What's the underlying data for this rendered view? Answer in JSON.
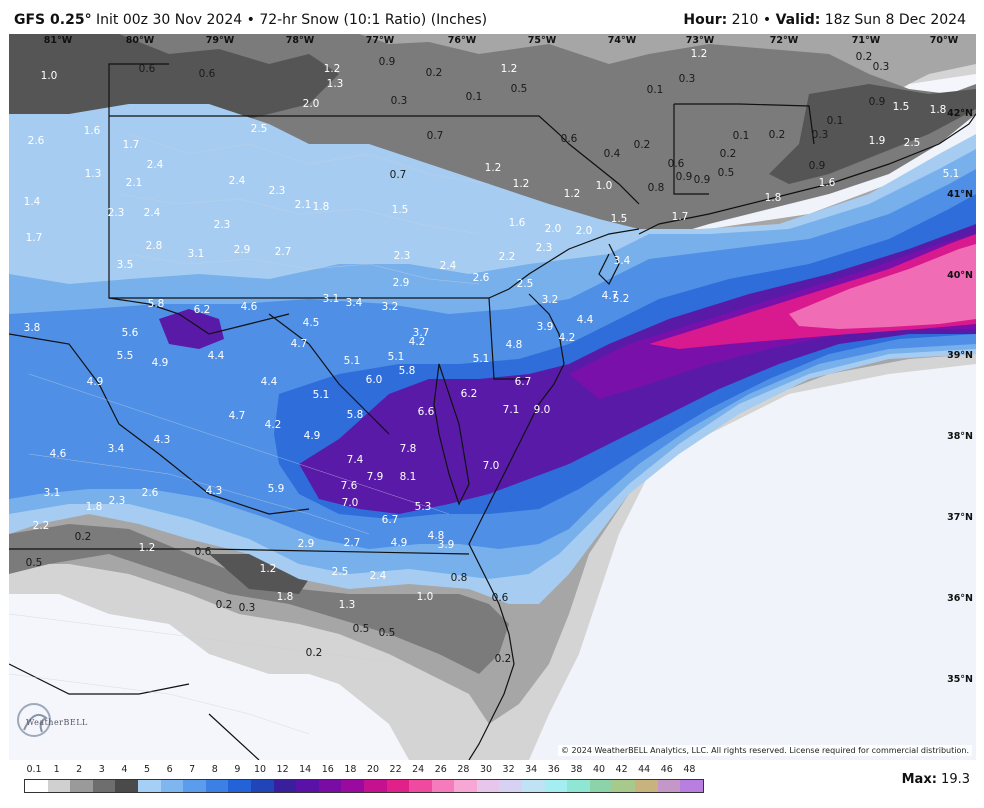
{
  "header": {
    "model": "GFS 0.25",
    "degree": "°",
    "init": "Init 00z 30 Nov 2024",
    "sep": "•",
    "product": "72-hr Snow (10:1 Ratio) (Inches)",
    "hour_label": "Hour:",
    "hour_value": "210",
    "valid_label": "Valid:",
    "valid_value": "18z Sun 8 Dec 2024"
  },
  "map": {
    "longitude_labels": [
      "81°W",
      "80°W",
      "79°W",
      "78°W",
      "77°W",
      "76°W",
      "75°W",
      "74°W",
      "73°W",
      "72°W",
      "71°W",
      "70°W"
    ],
    "latitude_labels": [
      "42°N",
      "41°N",
      "40°N",
      "39°N",
      "38°N",
      "37°N",
      "36°N",
      "35°N"
    ],
    "snow_values": [
      {
        "v": "1.0"
      },
      {
        "v": "0.6"
      },
      {
        "v": "0.6"
      },
      {
        "v": "1.2"
      },
      {
        "v": "0.9"
      },
      {
        "v": "0.2"
      },
      {
        "v": "1.2"
      },
      {
        "v": "1.3"
      },
      {
        "v": "0.2"
      },
      {
        "v": "0.3"
      },
      {
        "v": "1.2"
      },
      {
        "v": "0.5"
      },
      {
        "v": "0.1"
      },
      {
        "v": "0.3"
      },
      {
        "v": "0.1"
      },
      {
        "v": "0.9"
      },
      {
        "v": "1.5"
      },
      {
        "v": "1.8"
      },
      {
        "v": "2.0"
      },
      {
        "v": "0.3"
      },
      {
        "v": "0.1"
      },
      {
        "v": "2.5"
      },
      {
        "v": "0.7"
      },
      {
        "v": "0.6"
      },
      {
        "v": "0.1"
      },
      {
        "v": "0.2"
      },
      {
        "v": "0.3"
      },
      {
        "v": "1.6"
      },
      {
        "v": "1.7"
      },
      {
        "v": "2.6"
      },
      {
        "v": "1.9"
      },
      {
        "v": "2.5"
      },
      {
        "v": "0.4"
      },
      {
        "v": "0.2"
      },
      {
        "v": "0.2"
      },
      {
        "v": "2.4"
      },
      {
        "v": "1.2"
      },
      {
        "v": "0.6"
      },
      {
        "v": "0.9"
      },
      {
        "v": "0.9"
      },
      {
        "v": "0.7"
      },
      {
        "v": "1.3"
      },
      {
        "v": "0.9"
      },
      {
        "v": "0.5"
      },
      {
        "v": "5.1"
      },
      {
        "v": "2.4"
      },
      {
        "v": "1.2"
      },
      {
        "v": "1.0"
      },
      {
        "v": "1.6"
      },
      {
        "v": "2.1"
      },
      {
        "v": "0.8"
      },
      {
        "v": "1.4"
      },
      {
        "v": "2.3"
      },
      {
        "v": "1.2"
      },
      {
        "v": "1.8"
      },
      {
        "v": "2.1"
      },
      {
        "v": "1.8"
      },
      {
        "v": "1.5"
      },
      {
        "v": "1.7"
      },
      {
        "v": "2.3"
      },
      {
        "v": "2.4"
      },
      {
        "v": "1.5"
      },
      {
        "v": "2.3"
      },
      {
        "v": "1.6"
      },
      {
        "v": "2.0"
      },
      {
        "v": "2.3"
      },
      {
        "v": "2.0"
      },
      {
        "v": "1.7"
      },
      {
        "v": "2.8"
      },
      {
        "v": "3.1"
      },
      {
        "v": "2.9"
      },
      {
        "v": "2.7"
      },
      {
        "v": "2.2"
      },
      {
        "v": "3.4"
      },
      {
        "v": "2.3"
      },
      {
        "v": "2.4"
      },
      {
        "v": "3.5"
      },
      {
        "v": "2.9"
      },
      {
        "v": "2.6"
      },
      {
        "v": "2.5"
      },
      {
        "v": "4.7"
      },
      {
        "v": "5.2"
      },
      {
        "v": "3.1"
      },
      {
        "v": "3.4"
      },
      {
        "v": "3.2"
      },
      {
        "v": "3.2"
      },
      {
        "v": "5.8"
      },
      {
        "v": "6.2"
      },
      {
        "v": "4.6"
      },
      {
        "v": "4.5"
      },
      {
        "v": "4.4"
      },
      {
        "v": "3.9"
      },
      {
        "v": "4.2"
      },
      {
        "v": "3.8"
      },
      {
        "v": "5.6"
      },
      {
        "v": "4.7"
      },
      {
        "v": "3.7"
      },
      {
        "v": "4.2"
      },
      {
        "v": "4.8"
      },
      {
        "v": "5.5"
      },
      {
        "v": "4.9"
      },
      {
        "v": "4.4"
      },
      {
        "v": "5.1"
      },
      {
        "v": "5.1"
      },
      {
        "v": "5.8"
      },
      {
        "v": "5.1"
      },
      {
        "v": "4.9"
      },
      {
        "v": "6.0"
      },
      {
        "v": "4.4"
      },
      {
        "v": "5.1"
      },
      {
        "v": "6.7"
      },
      {
        "v": "6.2"
      },
      {
        "v": "4.7"
      },
      {
        "v": "5.8"
      },
      {
        "v": "6.6"
      },
      {
        "v": "7.1"
      },
      {
        "v": "9.0"
      },
      {
        "v": "4.2"
      },
      {
        "v": "4.9"
      },
      {
        "v": "4.3"
      },
      {
        "v": "7.8"
      },
      {
        "v": "3.4"
      },
      {
        "v": "4.6"
      },
      {
        "v": "7.4"
      },
      {
        "v": "7.0"
      },
      {
        "v": "7.9"
      },
      {
        "v": "8.1"
      },
      {
        "v": "7.6"
      },
      {
        "v": "3.1"
      },
      {
        "v": "2.6"
      },
      {
        "v": "4.3"
      },
      {
        "v": "5.9"
      },
      {
        "v": "1.8"
      },
      {
        "v": "2.3"
      },
      {
        "v": "7.0"
      },
      {
        "v": "5.3"
      },
      {
        "v": "6.7"
      },
      {
        "v": "2.2"
      },
      {
        "v": "4.8"
      },
      {
        "v": "0.2"
      },
      {
        "v": "4.9"
      },
      {
        "v": "3.9"
      },
      {
        "v": "1.2"
      },
      {
        "v": "0.6"
      },
      {
        "v": "2.9"
      },
      {
        "v": "2.7"
      },
      {
        "v": "0.5"
      },
      {
        "v": "1.2"
      },
      {
        "v": "2.5"
      },
      {
        "v": "2.4"
      },
      {
        "v": "0.8"
      },
      {
        "v": "1.8"
      },
      {
        "v": "1.0"
      },
      {
        "v": "0.6"
      },
      {
        "v": "0.2"
      },
      {
        "v": "0.3"
      },
      {
        "v": "1.3"
      },
      {
        "v": "0.5"
      },
      {
        "v": "0.5"
      },
      {
        "v": "0.2"
      },
      {
        "v": "0.2"
      }
    ]
  },
  "legend": {
    "ticks": [
      "0.1",
      "1",
      "2",
      "3",
      "4",
      "5",
      "6",
      "7",
      "8",
      "9",
      "10",
      "12",
      "14",
      "16",
      "18",
      "20",
      "22",
      "24",
      "26",
      "28",
      "30",
      "32",
      "34",
      "36",
      "38",
      "40",
      "42",
      "44",
      "46",
      "48"
    ],
    "colors": [
      "#ffffff",
      "#d0d0d0",
      "#9a9a9a",
      "#6e6e6e",
      "#4a4a4a",
      "#a5cff5",
      "#7fb6f0",
      "#5b9ded",
      "#3c80e6",
      "#2462d8",
      "#1f45b8",
      "#3a1f9c",
      "#5a11a8",
      "#7a0ca6",
      "#9a0aa0",
      "#c5108f",
      "#e2208a",
      "#f04aa0",
      "#f57bbd",
      "#f7a7d3",
      "#e8c6ec",
      "#d7d2f3",
      "#bfe2f5",
      "#a4eef2",
      "#8fe6d3",
      "#8cd3a9",
      "#a7c98c",
      "#c8b27e",
      "#c497c8",
      "#b97fe0"
    ],
    "max_label": "Max:",
    "max_value": "19.3"
  },
  "footer": {
    "copyright": "© 2024 WeatherBELL Analytics, LLC. All rights reserved. License required for commercial distribution.",
    "logo_text": "WeatherBELL"
  },
  "colors": {
    "background_sea": "#f0f3fa",
    "land_light": "#f4f6fb",
    "gray1": "#d4d4d4",
    "gray2": "#a6a6a6",
    "gray3": "#7b7b7b",
    "gray4": "#555555",
    "blue1": "#a6cdf1",
    "blue2": "#78b0ec",
    "blue3": "#4f8fe6",
    "blue4": "#2f6ddb",
    "purple1": "#5a1aa8",
    "purple2": "#7a10aa",
    "magenta": "#d91a8e",
    "pink": "#f06db5"
  }
}
